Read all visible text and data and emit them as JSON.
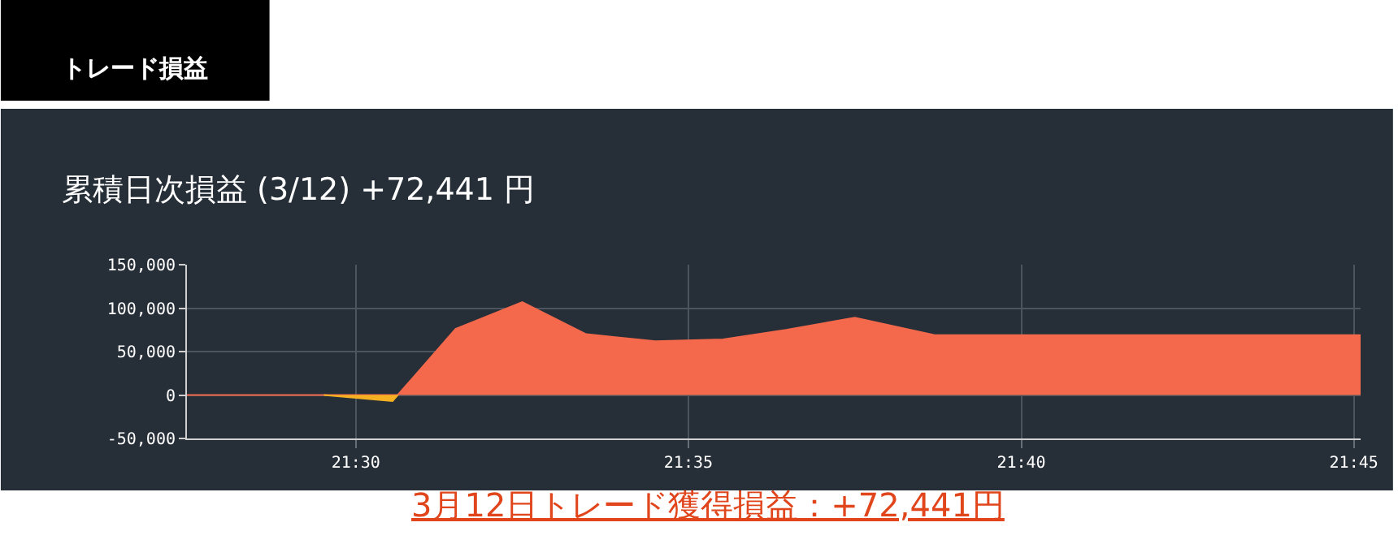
{
  "chart_data": {
    "type": "area",
    "title": "トレード損益",
    "subtitle": "累積日次損益 (3/12) +72,441 円",
    "annotations": [
      "3月12日トレード獲得損益：+72,441円"
    ],
    "series": [
      {
        "color": "#f4694c",
        "x": [
          21.4577,
          21.492,
          21.5105,
          21.525,
          21.5417,
          21.5577,
          21.575,
          21.592,
          21.6078,
          21.625,
          21.645,
          21.7517
        ],
        "values": [
          0,
          0,
          0,
          76000,
          107000,
          70000,
          62000,
          64000,
          75000,
          89000,
          69000,
          69000
        ]
      },
      {
        "color": "#f5b122",
        "x": [
          21.492,
          21.5092,
          21.5105
        ],
        "values": [
          0,
          -7000,
          0
        ]
      }
    ],
    "xlim": [
      21.4577,
      21.7517
    ],
    "xticks": [
      {
        "value": 21.5,
        "label": "21:30"
      },
      {
        "value": 21.5833,
        "label": "21:35"
      },
      {
        "value": 21.6667,
        "label": "21:40"
      },
      {
        "value": 21.75,
        "label": "21:45"
      }
    ],
    "ylim": [
      -50000,
      150000
    ],
    "yticks": [
      {
        "value": -50000,
        "label": "-50,000"
      },
      {
        "value": 0,
        "label": "0"
      },
      {
        "value": 50000,
        "label": "50,000"
      },
      {
        "value": 100000,
        "label": "100,000"
      },
      {
        "value": 150000,
        "label": "150,000"
      }
    ],
    "grid": true
  }
}
